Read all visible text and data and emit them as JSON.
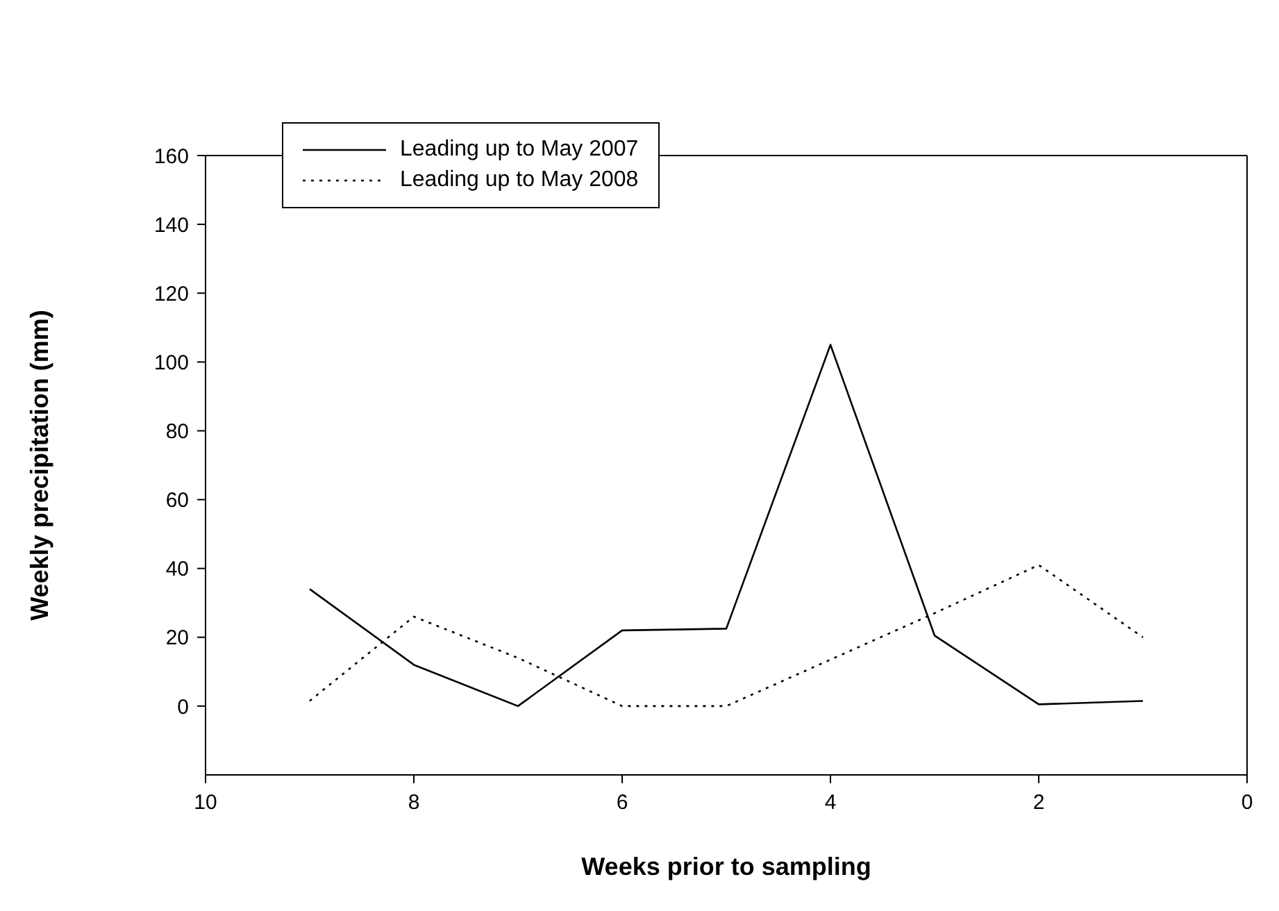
{
  "chart_data": {
    "type": "line",
    "xlabel": "Weeks prior to sampling",
    "ylabel": "Weekly precipitation (mm)",
    "x": [
      9,
      8,
      7,
      6,
      5,
      4,
      3,
      2,
      1
    ],
    "series": [
      {
        "name": "Leading up to May 2007",
        "color": "#000000",
        "line_style": "solid",
        "values": [
          34,
          12,
          0,
          22,
          22.5,
          105,
          20.5,
          0.5,
          1.5
        ]
      },
      {
        "name": "Leading up to May 2008",
        "color": "#000000",
        "line_style": "dotted",
        "values": [
          1.5,
          26,
          14,
          0,
          0,
          13.5,
          27,
          41,
          20
        ]
      }
    ],
    "xlim": [
      10,
      0
    ],
    "xticks": [
      10,
      8,
      6,
      4,
      2,
      0
    ],
    "ylim": [
      -20,
      160
    ],
    "yticks": [
      0,
      20,
      40,
      60,
      80,
      100,
      120,
      140,
      160
    ],
    "grid": false,
    "legend": "top left",
    "marker": "none"
  }
}
